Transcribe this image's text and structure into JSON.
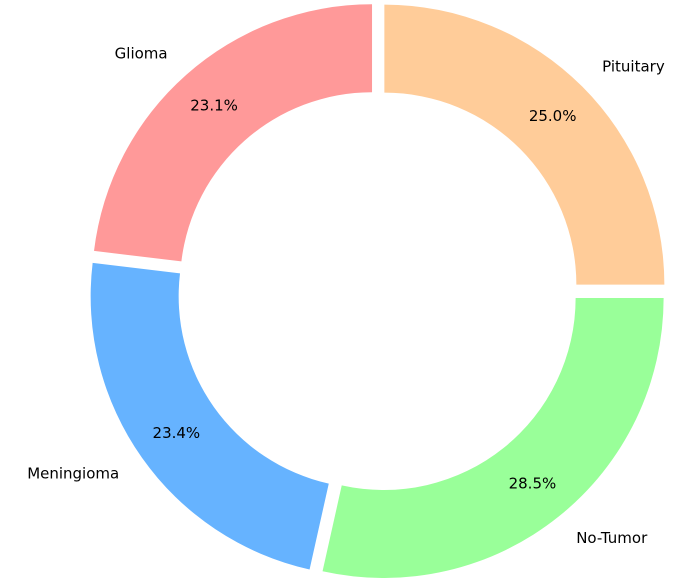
{
  "chart_data": {
    "type": "pie",
    "variant": "donut",
    "title": "",
    "start_angle": 90,
    "direction": "clockwise",
    "exploded": true,
    "slices": [
      {
        "label": "Pituitary",
        "value": 25.0,
        "pct_label": "25.0%",
        "color": "#ffcc99"
      },
      {
        "label": "No-Tumor",
        "value": 28.5,
        "pct_label": "28.5%",
        "color": "#99ff99"
      },
      {
        "label": "Meningioma",
        "value": 23.4,
        "pct_label": "23.4%",
        "color": "#66b3ff"
      },
      {
        "label": "Glioma",
        "value": 23.1,
        "pct_label": "23.1%",
        "color": "#ff9999"
      }
    ]
  }
}
